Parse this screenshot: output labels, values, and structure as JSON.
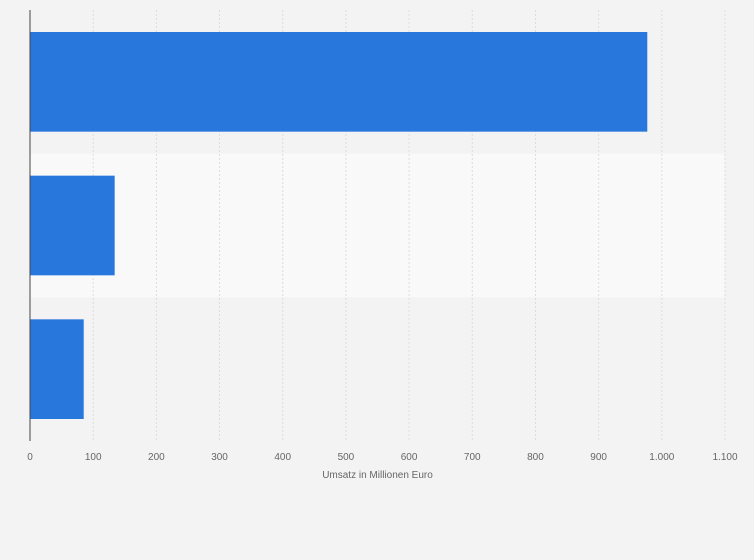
{
  "chart_data": {
    "type": "bar",
    "orientation": "horizontal",
    "categories": [
      "",
      "",
      ""
    ],
    "values": [
      977,
      134,
      85
    ],
    "xlabel": "Umsatz in Millionen Euro",
    "ylabel": "",
    "xlim": [
      0,
      1100
    ],
    "ticks": [
      0,
      100,
      200,
      300,
      400,
      500,
      600,
      700,
      800,
      900,
      1000,
      1100
    ],
    "tick_labels": [
      "0",
      "100",
      "200",
      "300",
      "400",
      "500",
      "600",
      "700",
      "800",
      "900",
      "1.000",
      "1.100"
    ],
    "grid": true,
    "legend": "none"
  },
  "colors": {
    "bar": "#2777dc",
    "background": "#f3f3f3",
    "band_alt": "#f9f9f9",
    "grid": "#dcdcdc",
    "axis": "#444444",
    "text": "#666666"
  }
}
